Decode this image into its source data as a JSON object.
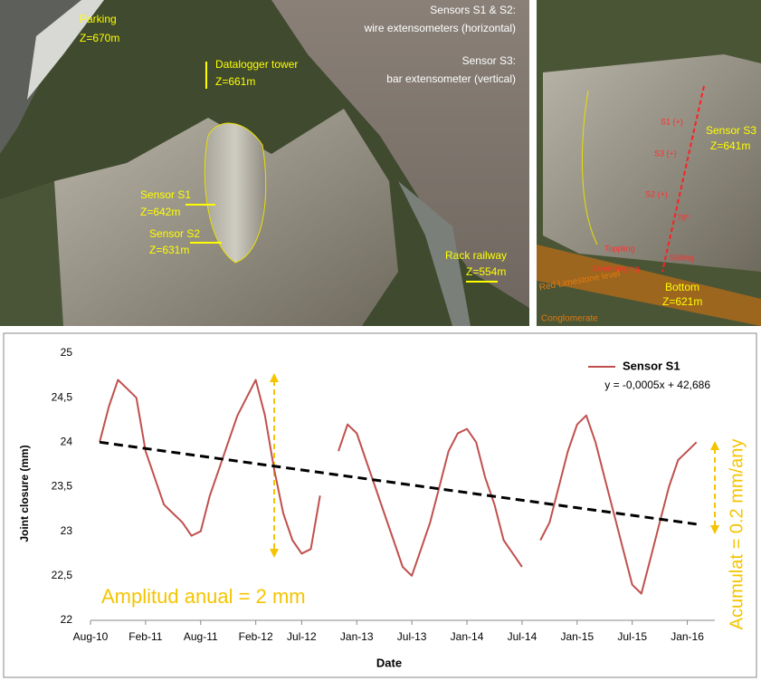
{
  "photos": {
    "left": {
      "parking": "Parking",
      "parking_z": "Z=670m",
      "tower": "Datalogger tower",
      "tower_z": "Z=661m",
      "sensors_12": "Sensors S1 & S2:",
      "sensors_12_desc": "wire extensometers (horizontal)",
      "sensor_3": "Sensor S3:",
      "sensor_3_desc": "bar extensometer (vertical)",
      "s1": "Sensor S1",
      "s1_z": "Z=642m",
      "s2": "Sensor S2",
      "s2_z": "Z=631m",
      "railway": "Rack railway",
      "railway_z": "Z=554m"
    },
    "right": {
      "s1": "S1 (+)",
      "s3": "S3 (+)",
      "s2": "S2 (+)",
      "angle": "76º",
      "sensor_3": "Sensor S3",
      "sensor_3_z": "Z=641m",
      "toppling": "Toppling",
      "sliding": "Sliding",
      "overhanging": "Overhanging",
      "bottom": "Bottom",
      "bottom_z": "Z=621m",
      "limestone": "Red Limestone level",
      "conglomerate": "Conglomerate"
    }
  },
  "chart_data": {
    "type": "line",
    "x_label": "Date",
    "y_label": "Joint closure (mm)",
    "x": [
      "2010-09",
      "2010-10",
      "2010-11",
      "2010-12",
      "2011-01",
      "2011-02",
      "2011-03",
      "2011-04",
      "2011-05",
      "2011-06",
      "2011-07",
      "2011-08",
      "2011-09",
      "2011-10",
      "2011-11",
      "2011-12",
      "2012-01",
      "2012-02",
      "2012-03",
      "2012-04",
      "2012-05",
      "2012-06",
      "2012-07",
      "2012-08",
      "2012-09",
      "2012-10",
      "2012-11",
      "2012-12",
      "2013-01",
      "2013-02",
      "2013-03",
      "2013-04",
      "2013-05",
      "2013-06",
      "2013-07",
      "2013-08",
      "2013-09",
      "2013-10",
      "2013-11",
      "2013-12",
      "2014-01",
      "2014-02",
      "2014-03",
      "2014-04",
      "2014-05",
      "2014-06",
      "2014-07",
      "2014-08",
      "2014-09",
      "2014-10",
      "2014-11",
      "2014-12",
      "2015-01",
      "2015-02",
      "2015-03",
      "2015-04",
      "2015-05",
      "2015-06",
      "2015-07",
      "2015-08",
      "2015-09",
      "2015-10",
      "2015-11",
      "2015-12",
      "2016-01",
      "2016-02"
    ],
    "series": [
      {
        "name": "Sensor S1",
        "color": "#c0504d",
        "values": [
          24.0,
          24.4,
          24.7,
          24.6,
          24.5,
          23.9,
          23.6,
          23.3,
          23.2,
          23.1,
          22.95,
          23.0,
          23.4,
          23.7,
          24.0,
          24.3,
          24.5,
          24.7,
          24.3,
          23.7,
          23.2,
          22.9,
          22.75,
          22.8,
          23.4,
          null,
          23.9,
          24.2,
          24.1,
          23.8,
          23.5,
          23.2,
          22.9,
          22.6,
          22.5,
          22.8,
          23.1,
          23.5,
          23.9,
          24.1,
          24.15,
          24.0,
          23.6,
          23.3,
          22.9,
          22.75,
          22.6,
          null,
          22.9,
          23.1,
          23.5,
          23.9,
          24.2,
          24.3,
          24.0,
          23.6,
          23.2,
          22.8,
          22.4,
          22.3,
          22.7,
          23.1,
          23.5,
          23.8,
          23.9,
          24.0
        ]
      }
    ],
    "trendline": {
      "label": "y = -0,0005x + 42,686",
      "color": "#000000",
      "x": [
        "2010-09",
        "2016-02"
      ],
      "values": [
        24.0,
        23.08
      ]
    },
    "xlim": [
      "2010-08",
      "2016-04"
    ],
    "xticks": [
      {
        "value": "2010-08",
        "label": "Aug-10"
      },
      {
        "value": "2011-02",
        "label": "Feb-11"
      },
      {
        "value": "2011-08",
        "label": "Aug-11"
      },
      {
        "value": "2012-02",
        "label": "Feb-12"
      },
      {
        "value": "2012-07",
        "label": "Jul-12"
      },
      {
        "value": "2013-01",
        "label": "Jan-13"
      },
      {
        "value": "2013-07",
        "label": "Jul-13"
      },
      {
        "value": "2014-01",
        "label": "Jan-14"
      },
      {
        "value": "2014-07",
        "label": "Jul-14"
      },
      {
        "value": "2015-01",
        "label": "Jan-15"
      },
      {
        "value": "2015-07",
        "label": "Jul-15"
      },
      {
        "value": "2016-01",
        "label": "Jan-16"
      }
    ],
    "ylim": [
      22,
      25
    ],
    "yticks": [
      22,
      {
        "value": 22.5,
        "label": "22,5"
      },
      23,
      {
        "value": 23.5,
        "label": "23,5"
      },
      24,
      {
        "value": 24.5,
        "label": "24,5"
      },
      25
    ],
    "grid": false,
    "annotations": [
      "Amplitud anual = 2  mm",
      "Acumulat = 0.2  mm/any"
    ],
    "annotation_color": "#f5c400"
  }
}
